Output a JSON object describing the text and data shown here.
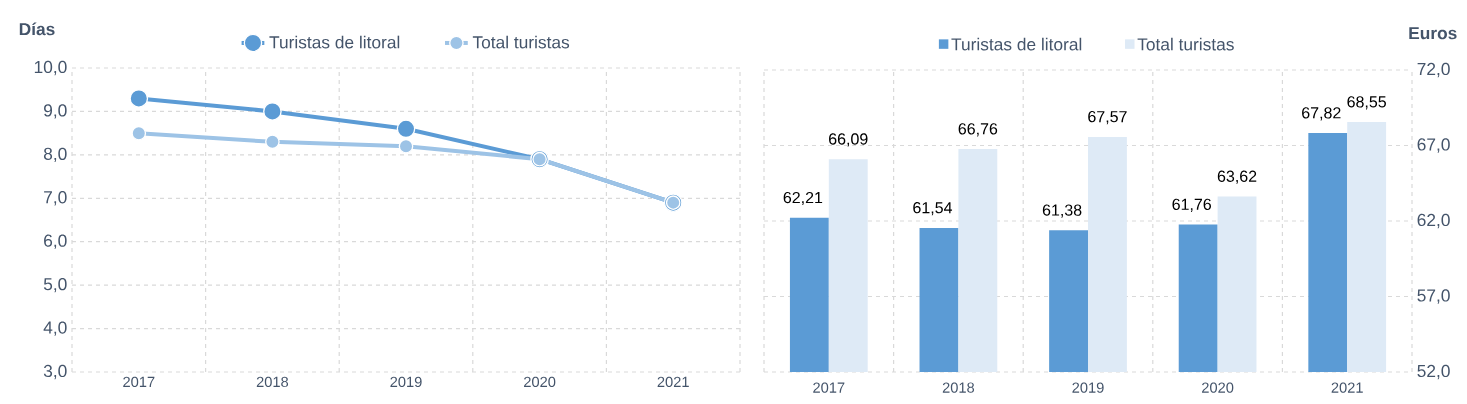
{
  "chart_data": [
    {
      "type": "line",
      "categories": [
        "2017",
        "2018",
        "2019",
        "2020",
        "2021"
      ],
      "ylabel": "Días",
      "series": [
        {
          "name": "Turistas de litoral",
          "color": "#5b9bd5",
          "values": [
            9.3,
            9.0,
            8.6,
            7.9,
            6.9
          ]
        },
        {
          "name": "Total turistas",
          "color": "#9dc3e6",
          "values": [
            8.5,
            8.3,
            8.2,
            7.9,
            6.9
          ]
        }
      ],
      "ylim": [
        3,
        10
      ],
      "yticks": [
        {
          "value": 3,
          "label": "3,0"
        },
        {
          "value": 4,
          "label": "4,0"
        },
        {
          "value": 5,
          "label": "5,0"
        },
        {
          "value": 6,
          "label": "6,0"
        },
        {
          "value": 7,
          "label": "7,0"
        },
        {
          "value": 8,
          "label": "8,0"
        },
        {
          "value": 9,
          "label": "9,0"
        },
        {
          "value": 10,
          "label": "10,0"
        }
      ],
      "grid": true,
      "legend": "top",
      "marker": "circle"
    },
    {
      "type": "bar",
      "categories": [
        "2017",
        "2018",
        "2019",
        "2020",
        "2021"
      ],
      "ylabel": "Euros",
      "series": [
        {
          "name": "Turistas de litoral",
          "color": "#5b9bd5",
          "values": [
            62.21,
            61.54,
            61.38,
            61.76,
            67.82
          ],
          "value_labels": [
            "62,21",
            "61,54",
            "61,38",
            "61,76",
            "67,82"
          ]
        },
        {
          "name": "Total turistas",
          "color": "#deeaf6",
          "values": [
            66.09,
            66.76,
            67.57,
            63.62,
            68.55
          ],
          "value_labels": [
            "66,09",
            "66,76",
            "67,57",
            "63,62",
            "68,55"
          ]
        }
      ],
      "ylim": [
        52,
        72
      ],
      "yticks": [
        {
          "value": 52,
          "label": "52,0"
        },
        {
          "value": 57,
          "label": "57,0"
        },
        {
          "value": 62,
          "label": "62,0"
        },
        {
          "value": 67,
          "label": "67,0"
        },
        {
          "value": 72,
          "label": "72,0"
        }
      ],
      "grid": true,
      "legend": "top"
    }
  ]
}
